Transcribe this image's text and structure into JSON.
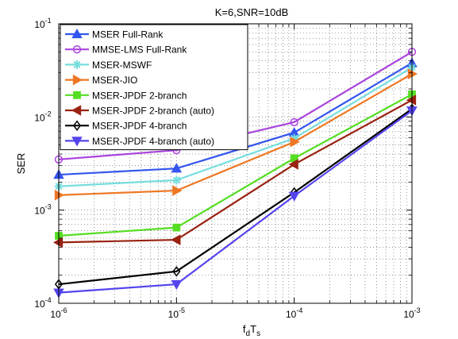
{
  "chart_data": {
    "type": "line",
    "title": "K=6,SNR=10dB",
    "xlabel_main": "f",
    "xlabel_sub1": "d",
    "xlabel_mid": "T",
    "xlabel_sub2": "s",
    "ylabel": "SER",
    "x_scale": "log",
    "y_scale": "log",
    "xlim": [
      1e-06,
      0.001
    ],
    "ylim": [
      0.0001,
      0.1
    ],
    "grid": true,
    "legend_position": "top-left",
    "x": [
      1e-06,
      1e-05,
      0.0001,
      0.001
    ],
    "x_ticks": [
      {
        "value": 1e-06,
        "base": "10",
        "exp": "-6"
      },
      {
        "value": 1e-05,
        "base": "10",
        "exp": "-5"
      },
      {
        "value": 0.0001,
        "base": "10",
        "exp": "-4"
      },
      {
        "value": 0.001,
        "base": "10",
        "exp": "-3"
      }
    ],
    "y_ticks": [
      {
        "value": 0.0001,
        "base": "10",
        "exp": "-4"
      },
      {
        "value": 0.001,
        "base": "10",
        "exp": "-3"
      },
      {
        "value": 0.01,
        "base": "10",
        "exp": "-2"
      },
      {
        "value": 0.1,
        "base": "10",
        "exp": "-1"
      }
    ],
    "series": [
      {
        "name": "MSER Full-Rank",
        "color": "#3355ee",
        "marker": "triangle-up",
        "values": [
          0.0024,
          0.0028,
          0.0068,
          0.038
        ]
      },
      {
        "name": "MMSE-LMS Full-Rank",
        "color": "#aa44dd",
        "marker": "circle",
        "values": [
          0.0035,
          0.0044,
          0.0088,
          0.05
        ]
      },
      {
        "name": "MSER-MSWF",
        "color": "#77dddd",
        "marker": "asterisk",
        "values": [
          0.0018,
          0.0021,
          0.0059,
          0.034
        ]
      },
      {
        "name": "MSER-JIO",
        "color": "#ee7722",
        "marker": "triangle-right",
        "values": [
          0.00145,
          0.00162,
          0.0054,
          0.029
        ]
      },
      {
        "name": "MSER-JPDF 2-branch",
        "color": "#55dd22",
        "marker": "square",
        "values": [
          0.00053,
          0.00065,
          0.0036,
          0.0175
        ]
      },
      {
        "name": "MSER-JPDF 2-branch (auto)",
        "color": "#992211",
        "marker": "triangle-left",
        "values": [
          0.00045,
          0.00048,
          0.0031,
          0.0152
        ]
      },
      {
        "name": "MSER-JPDF 4-branch",
        "color": "#000000",
        "marker": "diamond",
        "values": [
          0.00016,
          0.00022,
          0.00155,
          0.0122
        ]
      },
      {
        "name": "MSER-JPDF 4-branch (auto)",
        "color": "#5544ee",
        "marker": "triangle-down",
        "values": [
          0.00013,
          0.00016,
          0.00142,
          0.0117
        ]
      }
    ]
  }
}
